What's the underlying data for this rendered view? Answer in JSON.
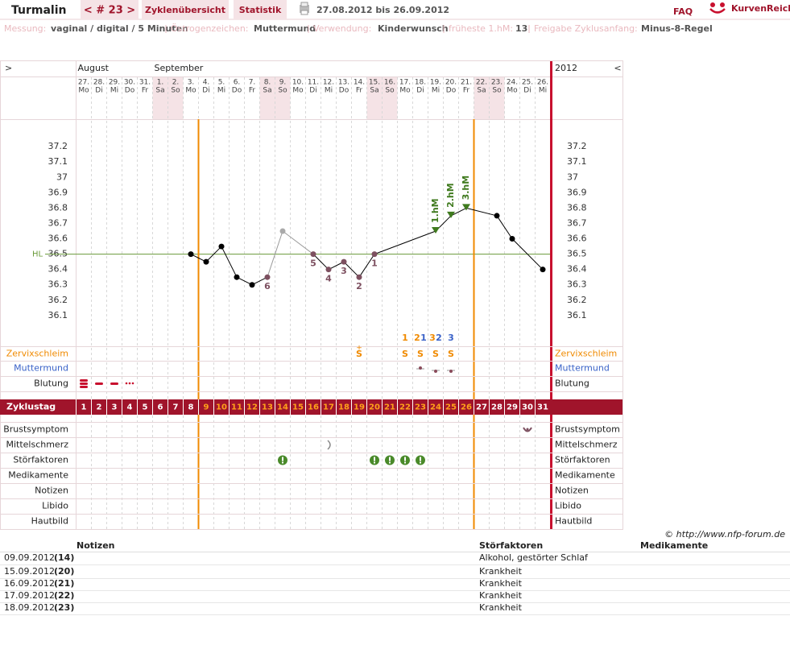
{
  "header": {
    "title": "Turmalin",
    "cycle_nav": "< # 23 >",
    "tabs": [
      "Zyklenübersicht",
      "Statistik"
    ],
    "date_range": "27.08.2012 bis 26.09.2012",
    "faq": "FAQ",
    "logo": "KurvenReich"
  },
  "info": [
    {
      "label": "Messung:",
      "value": "vaginal / digital / 5 Minuten"
    },
    {
      "label": "Östrogenzeichen:",
      "value": "Muttermund"
    },
    {
      "label": "Verwendung:",
      "value": "Kinderwunsch"
    },
    {
      "label": "früheste 1.hM:",
      "value": "13"
    },
    {
      "label": "Freigabe Zyklusanfang:",
      "value": "Minus-8-Regel"
    }
  ],
  "chart": {
    "nav_left": ">",
    "nav_right": "<",
    "months": [
      "August",
      "September"
    ],
    "year": "2012",
    "days": [
      "27.",
      "28.",
      "29.",
      "30.",
      "31.",
      "1.",
      "2.",
      "3.",
      "4.",
      "5.",
      "6.",
      "7.",
      "8.",
      "9.",
      "10.",
      "11.",
      "12.",
      "13.",
      "14.",
      "15.",
      "16.",
      "17.",
      "18.",
      "19.",
      "20.",
      "21.",
      "22.",
      "23.",
      "24.",
      "25.",
      "26."
    ],
    "weekdays": [
      "Mo",
      "Di",
      "Mi",
      "Do",
      "Fr",
      "Sa",
      "So",
      "Mo",
      "Di",
      "Mi",
      "Do",
      "Fr",
      "Sa",
      "So",
      "Mo",
      "Di",
      "Mi",
      "Do",
      "Fr",
      "Sa",
      "So",
      "Mo",
      "Di",
      "Mi",
      "Do",
      "Fr",
      "Sa",
      "So",
      "Mo",
      "Di",
      "Mi"
    ],
    "cycle_label": "Zyklustag",
    "cycle_days": [
      1,
      2,
      3,
      4,
      5,
      6,
      7,
      8,
      9,
      10,
      11,
      12,
      13,
      14,
      15,
      16,
      17,
      18,
      19,
      20,
      21,
      22,
      23,
      24,
      25,
      26,
      27,
      28,
      29,
      30,
      31
    ],
    "ylim": [
      35.9,
      37.4
    ],
    "yticks": [
      37.2,
      37.1,
      37,
      36.9,
      36.8,
      36.7,
      36.6,
      36.5,
      36.4,
      36.3,
      36.2,
      36.1
    ],
    "coverline": {
      "label": "HL",
      "value": 36.5
    },
    "points": [
      {
        "day": 8,
        "value": 36.5,
        "color": "#000000"
      },
      {
        "day": 9,
        "value": 36.45,
        "color": "#000000"
      },
      {
        "day": 10,
        "value": 36.55,
        "color": "#000000"
      },
      {
        "day": 11,
        "value": 36.35,
        "color": "#000000"
      },
      {
        "day": 12,
        "value": 36.3,
        "color": "#000000"
      },
      {
        "day": 13,
        "value": 36.35,
        "color": "#7d5060",
        "label": "6"
      },
      {
        "day": 14,
        "value": 36.65,
        "color": "#aaaaaa"
      },
      {
        "day": 16,
        "value": 36.5,
        "color": "#7d5060",
        "label": "5"
      },
      {
        "day": 17,
        "value": 36.4,
        "color": "#7d5060",
        "label": "4"
      },
      {
        "day": 18,
        "value": 36.45,
        "color": "#7d5060",
        "label": "3"
      },
      {
        "day": 19,
        "value": 36.35,
        "color": "#7d5060",
        "label": "2"
      },
      {
        "day": 20,
        "value": 36.5,
        "color": "#7d5060",
        "label": "1"
      },
      {
        "day": 24,
        "value": 36.65,
        "color": "#3f7a1e",
        "label": "1.hM",
        "marker": "triangle"
      },
      {
        "day": 25,
        "value": 36.75,
        "color": "#3f7a1e",
        "label": "2.hM",
        "marker": "triangle"
      },
      {
        "day": 26,
        "value": 36.8,
        "color": "#3f7a1e",
        "label": "3.hM",
        "marker": "triangle"
      },
      {
        "day": 28,
        "value": 36.75,
        "color": "#000000"
      },
      {
        "day": 29,
        "value": 36.6,
        "color": "#000000"
      },
      {
        "day": 31,
        "value": 36.4,
        "color": "#000000"
      }
    ],
    "mucus": [
      {
        "day": 19,
        "symbol": "S",
        "mark": "+"
      },
      {
        "day": 22,
        "symbol": "S",
        "top_orange": "1"
      },
      {
        "day": 23,
        "symbol": "S",
        "top_orange": "2",
        "top_blue": "1"
      },
      {
        "day": 24,
        "symbol": "S",
        "top_orange": "3",
        "top_blue": "2"
      },
      {
        "day": 25,
        "symbol": "S",
        "top_blue": "3"
      }
    ],
    "upper_rows": [
      "Zervixschleim",
      "Muttermund",
      "Blutung"
    ],
    "lower_rows": [
      "Brustsymptom",
      "Mittelschmerz",
      "Störfaktoren",
      "Medikamente",
      "Notizen",
      "Libido",
      "Hautbild"
    ]
  },
  "footer": {
    "copyright": "© http://www.nfp-forum.de",
    "columns": [
      "Notizen",
      "Störfaktoren",
      "Medikamente"
    ],
    "rows": [
      {
        "date": "09.09.2012",
        "day": "(14)",
        "stoerfaktoren": "Alkohol, gestörter Schlaf"
      },
      {
        "date": "15.09.2012",
        "day": "(20)",
        "stoerfaktoren": "Krankheit"
      },
      {
        "date": "16.09.2012",
        "day": "(21)",
        "stoerfaktoren": "Krankheit"
      },
      {
        "date": "17.09.2012",
        "day": "(22)",
        "stoerfaktoren": "Krankheit"
      },
      {
        "date": "18.09.2012",
        "day": "(23)",
        "stoerfaktoren": "Krankheit"
      }
    ]
  }
}
